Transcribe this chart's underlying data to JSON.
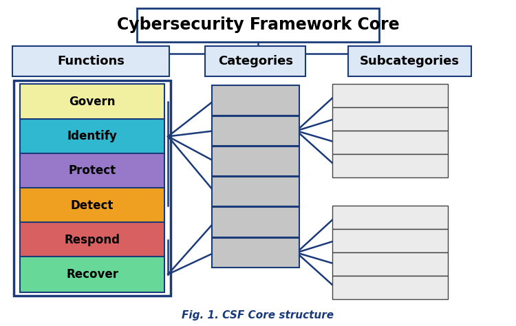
{
  "title": "Cybersecurity Framework Core",
  "caption": "Fig. 1. CSF Core structure",
  "functions": [
    "Govern",
    "Identify",
    "Protect",
    "Detect",
    "Respond",
    "Recover"
  ],
  "function_colors": [
    "#f0f0a0",
    "#30b8d0",
    "#9878c8",
    "#f0a020",
    "#d86060",
    "#68d898"
  ],
  "header_bg": "#dce8f5",
  "header_border": "#1a3a7a",
  "category_box_color": "#c5c5c5",
  "category_box_border": "#1a3a7a",
  "subcategory_box_color": "#ebebeb",
  "subcategory_box_border": "#444444",
  "functions_frame_color": "#1a3a7a",
  "line_color": "#1a3a7a",
  "background_color": "#ffffff",
  "title_fontsize": 17,
  "header_fontsize": 13,
  "function_fontsize": 12,
  "caption_fontsize": 11
}
